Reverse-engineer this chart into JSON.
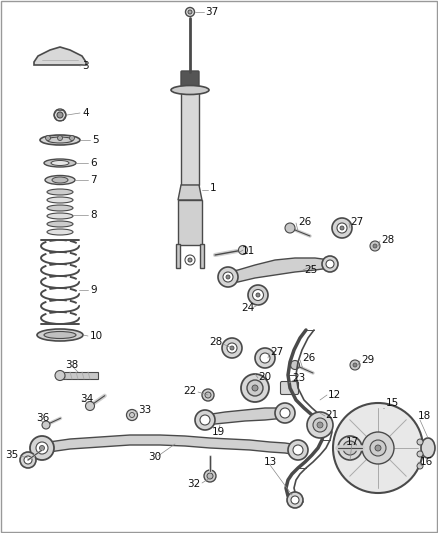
{
  "bg_color": "#ffffff",
  "line_color": "#4a4a4a",
  "text_color": "#111111",
  "figsize": [
    4.38,
    5.33
  ],
  "dpi": 100,
  "label_fs": 7.5,
  "parts_labels": {
    "37": [
      202,
      14,
      212,
      14
    ],
    "3": [
      68,
      68,
      80,
      66
    ],
    "4": [
      82,
      115,
      90,
      113
    ],
    "5": [
      90,
      142,
      98,
      140
    ],
    "6": [
      88,
      168,
      96,
      166
    ],
    "7": [
      88,
      186,
      96,
      184
    ],
    "8": [
      86,
      215,
      94,
      213
    ],
    "9": [
      78,
      278,
      86,
      276
    ],
    "10": [
      78,
      342,
      86,
      340
    ],
    "1": [
      205,
      175,
      213,
      175
    ],
    "11": [
      228,
      253,
      236,
      251
    ],
    "25": [
      298,
      273,
      306,
      271
    ],
    "24": [
      258,
      300,
      252,
      308
    ],
    "26a": [
      290,
      230,
      298,
      228
    ],
    "27a": [
      338,
      228,
      346,
      226
    ],
    "28a": [
      374,
      248,
      382,
      246
    ],
    "28b": [
      232,
      348,
      224,
      346
    ],
    "27b": [
      262,
      358,
      270,
      356
    ],
    "26b": [
      293,
      367,
      301,
      365
    ],
    "29": [
      352,
      368,
      360,
      366
    ],
    "12": [
      325,
      390,
      333,
      388
    ],
    "20": [
      248,
      385,
      256,
      383
    ],
    "22": [
      205,
      392,
      197,
      390
    ],
    "23": [
      285,
      388,
      293,
      386
    ],
    "21": [
      315,
      422,
      323,
      420
    ],
    "19": [
      210,
      430,
      218,
      428
    ],
    "13": [
      270,
      460,
      262,
      458
    ],
    "15": [
      375,
      400,
      383,
      398
    ],
    "17": [
      352,
      432,
      344,
      440
    ],
    "18": [
      412,
      418,
      420,
      416
    ],
    "16": [
      412,
      465,
      420,
      463
    ],
    "38": [
      73,
      375,
      65,
      373
    ],
    "34": [
      82,
      406,
      74,
      404
    ],
    "33": [
      128,
      415,
      136,
      413
    ],
    "36": [
      38,
      425,
      30,
      423
    ],
    "30": [
      148,
      450,
      140,
      458
    ],
    "35": [
      24,
      455,
      16,
      453
    ],
    "32": [
      198,
      476,
      190,
      484
    ]
  }
}
